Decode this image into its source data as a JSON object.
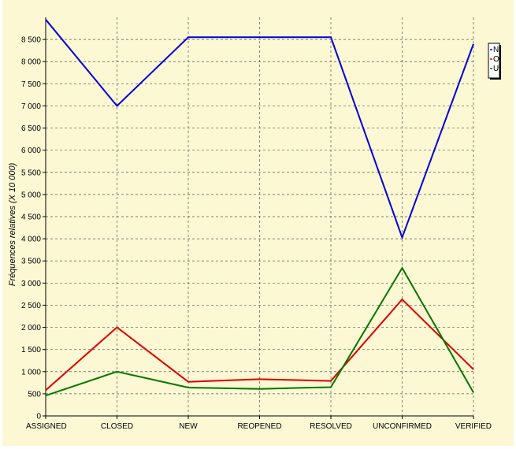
{
  "chart_data": {
    "type": "line",
    "title": "",
    "xlabel": "",
    "ylabel": "Fréquences relatives (X 10 000)",
    "ylim": [
      0,
      9000
    ],
    "yticks": [
      0,
      500,
      1000,
      1500,
      2000,
      2500,
      3000,
      3500,
      4000,
      4500,
      5000,
      5500,
      6000,
      6500,
      7000,
      7500,
      8000,
      8500
    ],
    "ytick_labels": [
      "0",
      "500",
      "1 000",
      "1 500",
      "2 000",
      "2 500",
      "3 000",
      "3 500",
      "4 000",
      "4 500",
      "5 000",
      "5 500",
      "6 000",
      "6 500",
      "7 000",
      "7 500",
      "8 000",
      "8 500"
    ],
    "grid": true,
    "legend_position": "top-right",
    "categories": [
      "ASSIGNED",
      "CLOSED",
      "NEW",
      "REOPENED",
      "RESOLVED",
      "UNCONFIRMED",
      "VERIFIED"
    ],
    "series": [
      {
        "name": "N",
        "color": "#0000dd",
        "values": [
          8950,
          7000,
          8550,
          8550,
          8550,
          4030,
          8400
        ]
      },
      {
        "name": "O",
        "color": "#dd0000",
        "values": [
          580,
          2000,
          770,
          830,
          790,
          2630,
          1050
        ]
      },
      {
        "name": "U",
        "color": "#007700",
        "values": [
          460,
          1000,
          640,
          610,
          650,
          3340,
          530
        ]
      }
    ]
  }
}
